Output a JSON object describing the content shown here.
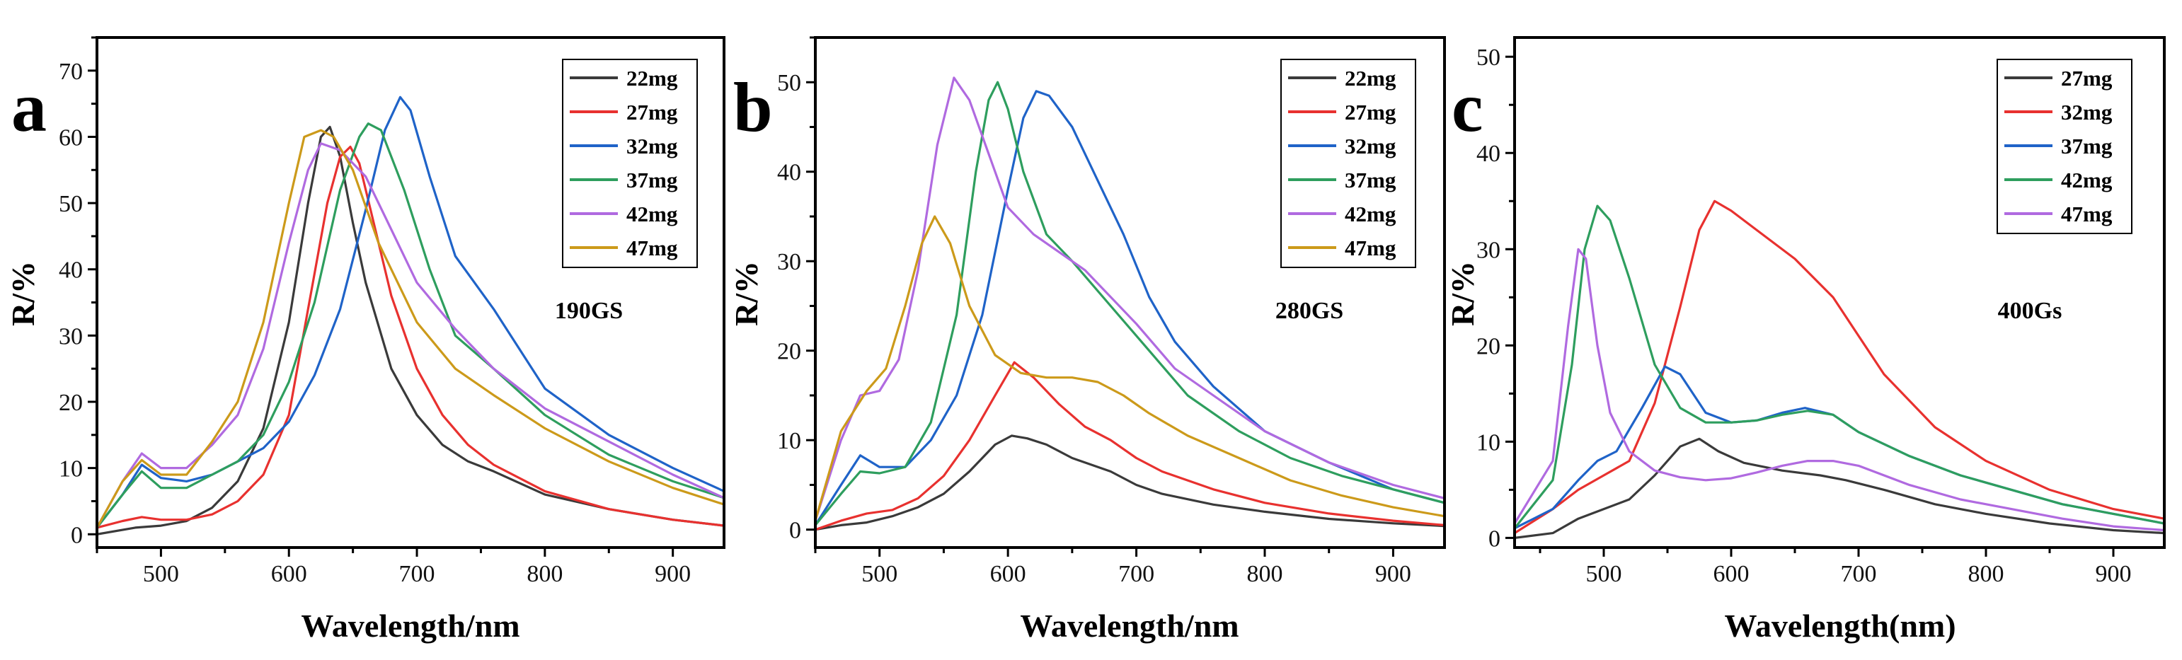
{
  "chart_data": [
    {
      "type": "line",
      "panel_letter": "a",
      "annotation": "190GS",
      "xlabel": "Wavelength/nm",
      "ylabel": "R/%",
      "xlim": [
        450,
        940
      ],
      "ylim": [
        -2,
        75
      ],
      "xticks": [
        500,
        600,
        700,
        800,
        900
      ],
      "yticks": [
        0,
        10,
        20,
        30,
        40,
        50,
        60,
        70
      ],
      "legend_position": "top-right",
      "series": [
        {
          "name": "22mg",
          "color": "#3a3a3a",
          "x": [
            450,
            480,
            500,
            520,
            540,
            560,
            580,
            600,
            615,
            625,
            632,
            640,
            650,
            660,
            680,
            700,
            720,
            740,
            760,
            800,
            850,
            900,
            940
          ],
          "y": [
            0,
            1,
            1.3,
            2,
            4,
            8,
            16,
            32,
            50,
            60,
            61.5,
            57,
            47,
            38,
            25,
            18,
            13.5,
            11,
            9.5,
            6,
            3.8,
            2.2,
            1.3
          ]
        },
        {
          "name": "27mg",
          "color": "#e8312f",
          "x": [
            450,
            470,
            485,
            500,
            520,
            540,
            560,
            580,
            600,
            615,
            630,
            640,
            648,
            655,
            665,
            680,
            700,
            720,
            740,
            760,
            800,
            850,
            900,
            940
          ],
          "y": [
            1,
            2,
            2.6,
            2.2,
            2.2,
            3,
            5,
            9,
            18,
            34,
            50,
            57,
            58.5,
            56,
            48,
            36,
            25,
            18,
            13.5,
            10.5,
            6.5,
            3.8,
            2.2,
            1.3
          ]
        },
        {
          "name": "32mg",
          "color": "#1f63c8",
          "x": [
            450,
            470,
            485,
            500,
            520,
            540,
            560,
            580,
            600,
            620,
            640,
            660,
            675,
            687,
            695,
            710,
            730,
            760,
            800,
            850,
            900,
            940
          ],
          "y": [
            1,
            6,
            10.5,
            8.5,
            8,
            9,
            11,
            13,
            17,
            24,
            34,
            49,
            61,
            66,
            64,
            54,
            42,
            34,
            22,
            15,
            10,
            6.5
          ]
        },
        {
          "name": "37mg",
          "color": "#2e9e5e",
          "x": [
            450,
            470,
            485,
            500,
            520,
            540,
            560,
            580,
            600,
            620,
            640,
            655,
            662,
            672,
            690,
            710,
            730,
            760,
            800,
            850,
            900,
            940
          ],
          "y": [
            1,
            6,
            9.5,
            7,
            7,
            9,
            11,
            15,
            23,
            35,
            52,
            60,
            62,
            61,
            52,
            40,
            30,
            25,
            18,
            12,
            8,
            5.5
          ]
        },
        {
          "name": "42mg",
          "color": "#b06ae0",
          "x": [
            450,
            470,
            485,
            500,
            520,
            540,
            560,
            580,
            600,
            615,
            625,
            640,
            660,
            680,
            700,
            730,
            760,
            800,
            850,
            900,
            940
          ],
          "y": [
            1,
            8,
            12.2,
            10,
            10,
            13.5,
            18,
            28,
            44,
            55,
            59,
            58,
            54,
            46,
            38,
            31,
            25,
            19,
            14,
            9,
            5.5
          ]
        },
        {
          "name": "47mg",
          "color": "#cc9a1a",
          "x": [
            450,
            470,
            485,
            500,
            520,
            540,
            560,
            580,
            600,
            612,
            625,
            635,
            650,
            670,
            700,
            730,
            760,
            800,
            850,
            900,
            940
          ],
          "y": [
            1,
            8,
            11.2,
            9,
            9,
            14,
            20,
            32,
            50,
            60,
            61,
            60,
            55,
            44,
            32,
            25,
            21,
            16,
            11,
            7,
            4.5
          ]
        }
      ]
    },
    {
      "type": "line",
      "panel_letter": "b",
      "annotation": "280GS",
      "xlabel": "Wavelength/nm",
      "ylabel": "R/%",
      "xlim": [
        450,
        940
      ],
      "ylim": [
        -2,
        55
      ],
      "xticks": [
        500,
        600,
        700,
        800,
        900
      ],
      "yticks": [
        0,
        10,
        20,
        30,
        40,
        50
      ],
      "legend_position": "top-right",
      "series": [
        {
          "name": "22mg",
          "color": "#3a3a3a",
          "x": [
            450,
            470,
            490,
            510,
            530,
            550,
            570,
            590,
            603,
            615,
            630,
            650,
            680,
            700,
            720,
            760,
            800,
            850,
            900,
            940
          ],
          "y": [
            0,
            0.5,
            0.8,
            1.5,
            2.5,
            4,
            6.5,
            9.5,
            10.5,
            10.2,
            9.5,
            8,
            6.5,
            5,
            4,
            2.8,
            2,
            1.2,
            0.7,
            0.4
          ]
        },
        {
          "name": "27mg",
          "color": "#e8312f",
          "x": [
            450,
            470,
            490,
            510,
            530,
            550,
            570,
            590,
            605,
            620,
            640,
            660,
            680,
            700,
            720,
            760,
            800,
            850,
            900,
            940
          ],
          "y": [
            0,
            1,
            1.8,
            2.2,
            3.5,
            6,
            10,
            15,
            18.7,
            17,
            14,
            11.5,
            10,
            8,
            6.5,
            4.5,
            3,
            1.8,
            1,
            0.5
          ]
        },
        {
          "name": "32mg",
          "color": "#1f63c8",
          "x": [
            450,
            470,
            485,
            500,
            520,
            540,
            560,
            580,
            600,
            612,
            622,
            632,
            650,
            670,
            690,
            710,
            730,
            760,
            800,
            850,
            900,
            940
          ],
          "y": [
            0.5,
            5,
            8.3,
            7,
            7,
            10,
            15,
            24,
            38,
            46,
            49,
            48.5,
            45,
            39,
            33,
            26,
            21,
            16,
            11,
            7.5,
            4.5,
            3
          ]
        },
        {
          "name": "37mg",
          "color": "#2e9e5e",
          "x": [
            450,
            470,
            485,
            500,
            520,
            540,
            560,
            575,
            585,
            592,
            600,
            612,
            630,
            650,
            680,
            710,
            740,
            780,
            820,
            860,
            900,
            940
          ],
          "y": [
            0.5,
            4,
            6.5,
            6.3,
            7,
            12,
            24,
            40,
            48,
            50,
            47,
            40,
            33,
            30,
            25,
            20,
            15,
            11,
            8,
            6,
            4.5,
            3
          ]
        },
        {
          "name": "42mg",
          "color": "#b06ae0",
          "x": [
            450,
            470,
            485,
            500,
            515,
            530,
            545,
            558,
            570,
            585,
            600,
            620,
            640,
            660,
            680,
            700,
            730,
            760,
            800,
            850,
            900,
            940
          ],
          "y": [
            1,
            10,
            15,
            15.5,
            19,
            29,
            43,
            50.5,
            48,
            42,
            36,
            33,
            31,
            29,
            26,
            23,
            18,
            15,
            11,
            7.5,
            5,
            3.5
          ]
        },
        {
          "name": "47mg",
          "color": "#cc9a1a",
          "x": [
            450,
            470,
            490,
            505,
            520,
            533,
            543,
            555,
            570,
            590,
            610,
            630,
            650,
            670,
            690,
            710,
            740,
            780,
            820,
            860,
            900,
            940
          ],
          "y": [
            1,
            11,
            15.5,
            18,
            25,
            32,
            35,
            32,
            25,
            19.5,
            17.5,
            17,
            17,
            16.5,
            15,
            13,
            10.5,
            8,
            5.5,
            3.8,
            2.5,
            1.5
          ]
        }
      ]
    },
    {
      "type": "line",
      "panel_letter": "c",
      "annotation": "400Gs",
      "xlabel": "Wavelength(nm)",
      "ylabel": "R/%",
      "xlim": [
        430,
        940
      ],
      "ylim": [
        -1,
        52
      ],
      "xticks": [
        500,
        600,
        700,
        800,
        900
      ],
      "yticks": [
        0,
        10,
        20,
        30,
        40,
        50
      ],
      "legend_position": "top-right",
      "series": [
        {
          "name": "27mg",
          "color": "#3a3a3a",
          "x": [
            430,
            460,
            480,
            500,
            520,
            540,
            560,
            575,
            590,
            610,
            640,
            670,
            690,
            720,
            760,
            800,
            850,
            900,
            940
          ],
          "y": [
            0,
            0.5,
            2,
            3,
            4,
            6.5,
            9.5,
            10.3,
            9,
            7.8,
            7,
            6.5,
            6,
            5,
            3.5,
            2.5,
            1.5,
            0.8,
            0.5
          ]
        },
        {
          "name": "32mg",
          "color": "#e8312f",
          "x": [
            430,
            460,
            480,
            500,
            520,
            540,
            560,
            575,
            587,
            600,
            620,
            650,
            680,
            700,
            720,
            760,
            800,
            850,
            900,
            940
          ],
          "y": [
            0.5,
            3,
            5,
            6.5,
            8,
            14,
            24,
            32,
            35,
            34,
            32,
            29,
            25,
            21,
            17,
            11.5,
            8,
            5,
            3,
            2
          ]
        },
        {
          "name": "37mg",
          "color": "#1f63c8",
          "x": [
            430,
            460,
            480,
            495,
            510,
            530,
            548,
            560,
            580,
            600,
            620,
            640,
            658,
            680,
            700,
            740,
            780,
            820,
            860,
            900,
            940
          ],
          "y": [
            1,
            3,
            6,
            8,
            9,
            13.5,
            17.8,
            17,
            13,
            12,
            12.2,
            13,
            13.5,
            12.8,
            11,
            8.5,
            6.5,
            5,
            3.5,
            2.5,
            1.5
          ]
        },
        {
          "name": "42mg",
          "color": "#2e9e5e",
          "x": [
            430,
            460,
            475,
            485,
            495,
            505,
            520,
            540,
            560,
            580,
            600,
            620,
            640,
            660,
            680,
            700,
            740,
            780,
            820,
            860,
            900,
            940
          ],
          "y": [
            1,
            6,
            18,
            30,
            34.5,
            33,
            27,
            18,
            13.5,
            12,
            12,
            12.2,
            12.8,
            13.2,
            12.8,
            11,
            8.5,
            6.5,
            5,
            3.5,
            2.5,
            1.5
          ]
        },
        {
          "name": "47mg",
          "color": "#b06ae0",
          "x": [
            430,
            460,
            472,
            480,
            486,
            495,
            505,
            520,
            540,
            560,
            580,
            600,
            620,
            640,
            660,
            680,
            700,
            740,
            780,
            820,
            860,
            900,
            940
          ],
          "y": [
            1.5,
            8,
            22,
            30,
            29,
            20,
            13,
            9,
            7,
            6.3,
            6,
            6.2,
            6.8,
            7.5,
            8,
            8,
            7.5,
            5.5,
            4,
            3,
            2,
            1.2,
            0.8
          ]
        }
      ]
    }
  ]
}
